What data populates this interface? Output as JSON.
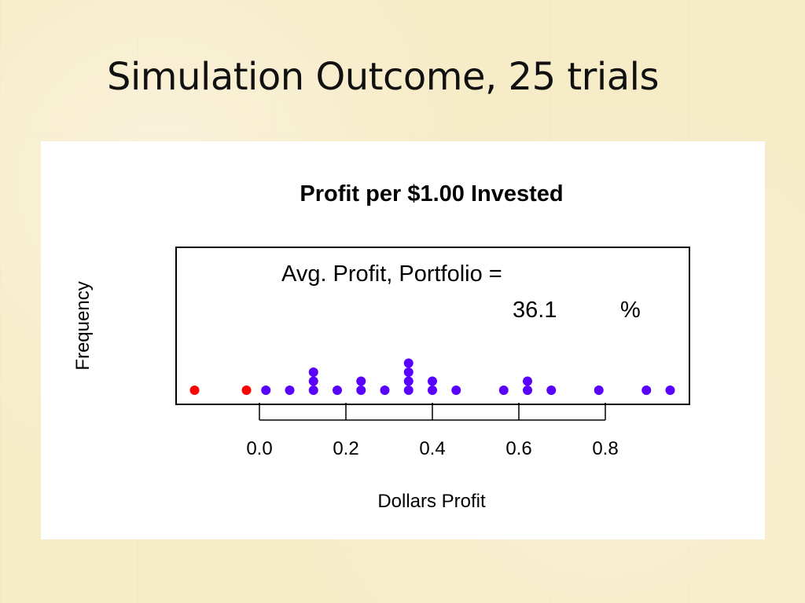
{
  "slide": {
    "title": "Simulation Outcome, 25 trials"
  },
  "chart_data": {
    "type": "scatter",
    "subtype": "dot-plot",
    "title": "Profit per $1.00 Invested",
    "xlabel": "Dollars Profit",
    "ylabel": "Frequency",
    "xlim": [
      -0.16,
      0.98
    ],
    "x_ticks": [
      0.0,
      0.2,
      0.4,
      0.6,
      0.8
    ],
    "x_tick_labels": [
      "0.0",
      "0.2",
      "0.4",
      "0.6",
      "0.8"
    ],
    "grid": false,
    "annotation": {
      "line1": "Avg. Profit, Portfolio =",
      "value": "36.1",
      "unit": "%"
    },
    "colors": {
      "positive": "#5a00ff",
      "negative": "#ff0000"
    },
    "points": [
      {
        "x": -0.15,
        "count": 1,
        "color": "negative"
      },
      {
        "x": -0.03,
        "count": 1,
        "color": "negative"
      },
      {
        "x": 0.015,
        "count": 1,
        "color": "positive"
      },
      {
        "x": 0.07,
        "count": 1,
        "color": "positive"
      },
      {
        "x": 0.125,
        "count": 3,
        "color": "positive"
      },
      {
        "x": 0.18,
        "count": 1,
        "color": "positive"
      },
      {
        "x": 0.235,
        "count": 2,
        "color": "positive"
      },
      {
        "x": 0.29,
        "count": 1,
        "color": "positive"
      },
      {
        "x": 0.345,
        "count": 4,
        "color": "positive"
      },
      {
        "x": 0.4,
        "count": 2,
        "color": "positive"
      },
      {
        "x": 0.455,
        "count": 1,
        "color": "positive"
      },
      {
        "x": 0.565,
        "count": 1,
        "color": "positive"
      },
      {
        "x": 0.62,
        "count": 2,
        "color": "positive"
      },
      {
        "x": 0.675,
        "count": 1,
        "color": "positive"
      },
      {
        "x": 0.785,
        "count": 1,
        "color": "positive"
      },
      {
        "x": 0.895,
        "count": 1,
        "color": "positive"
      },
      {
        "x": 0.95,
        "count": 1,
        "color": "positive"
      }
    ]
  }
}
